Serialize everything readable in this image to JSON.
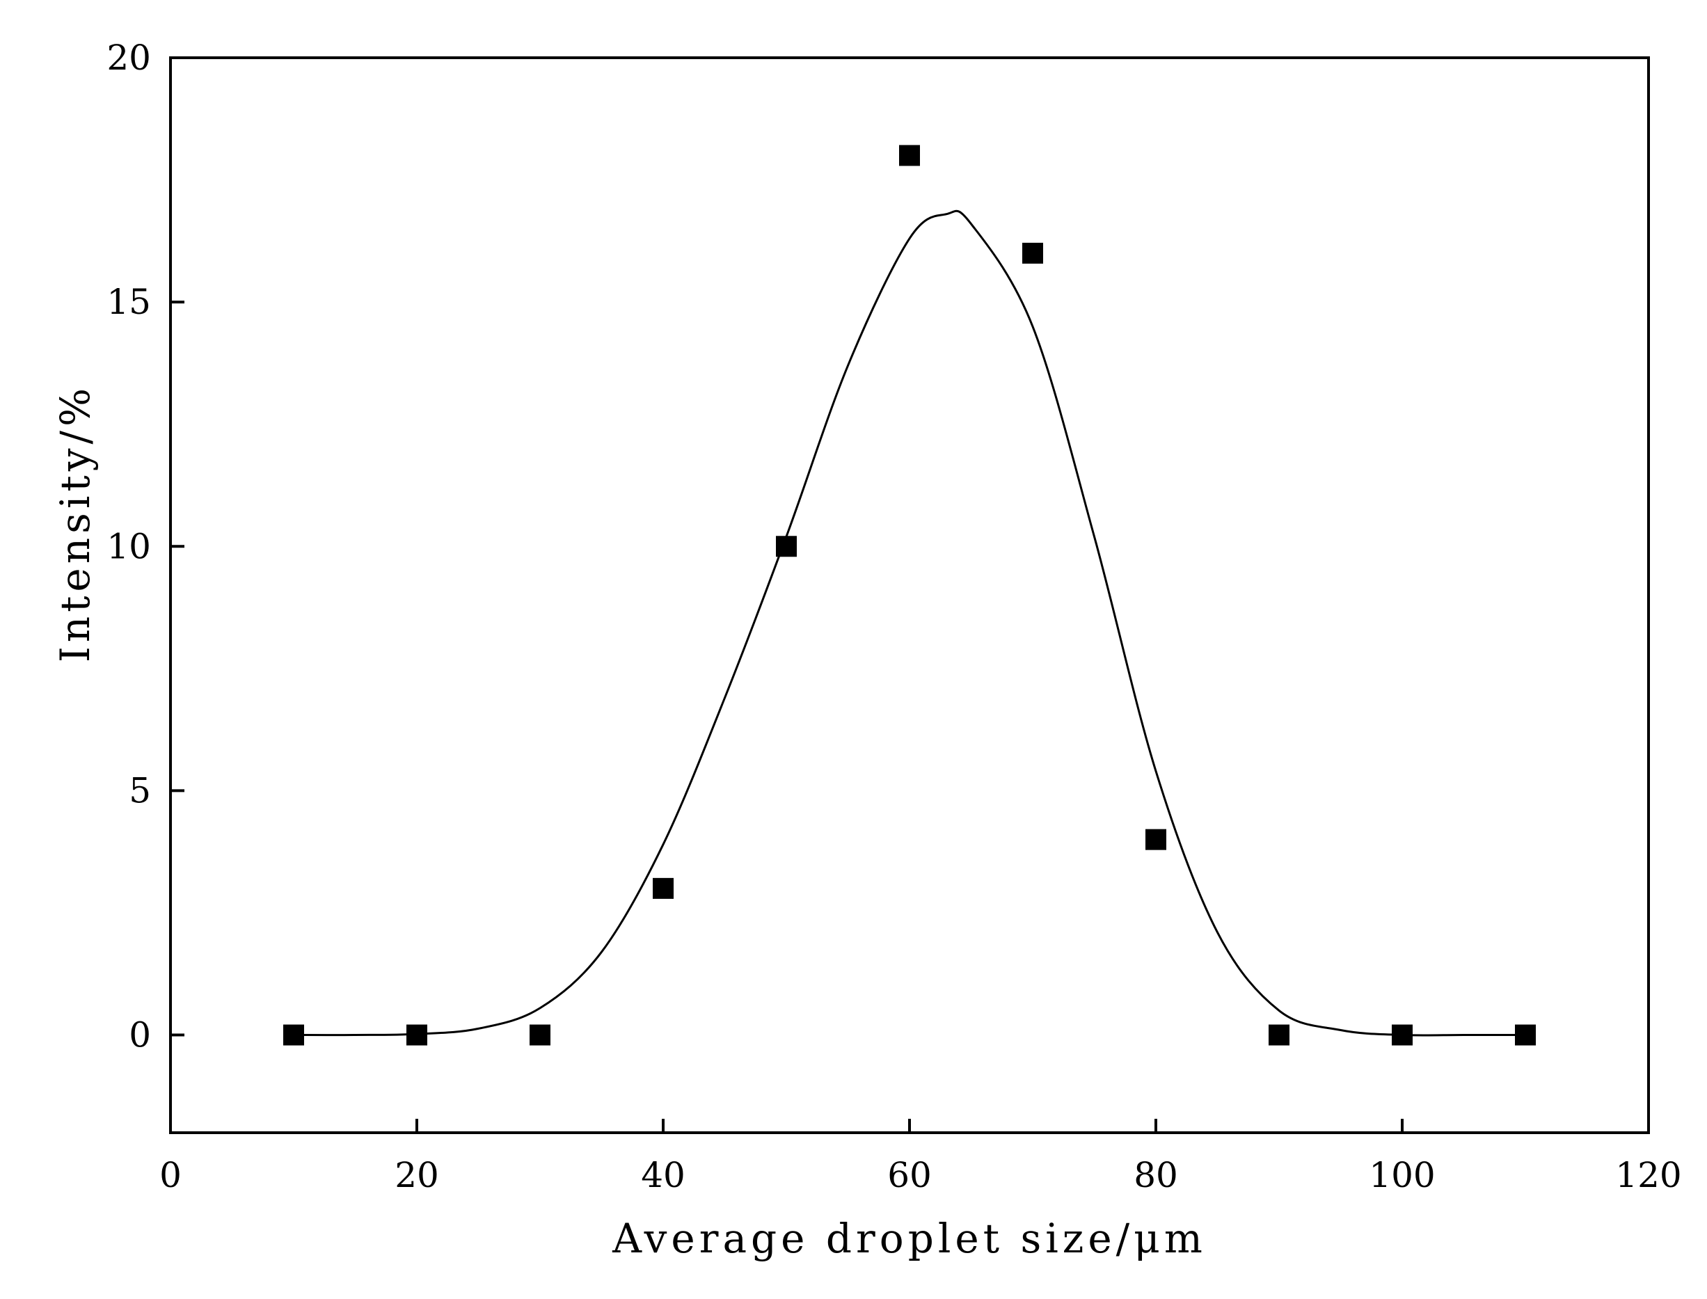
{
  "chart_data": {
    "type": "scatter",
    "title": "",
    "xlabel": "Average droplet size/μm",
    "ylabel": "Intensity/%",
    "xlim": [
      0,
      120
    ],
    "ylim": [
      -2,
      20
    ],
    "x_ticks": [
      0,
      20,
      40,
      60,
      80,
      100,
      120
    ],
    "y_ticks": [
      0,
      5,
      10,
      15,
      20
    ],
    "grid": false,
    "legend": "none",
    "series": [
      {
        "kind": "points",
        "marker": "filled-square",
        "color": "#000000",
        "x": [
          10,
          20,
          30,
          40,
          50,
          60,
          70,
          80,
          90,
          100,
          110
        ],
        "y": [
          0,
          0,
          0,
          3,
          10,
          18,
          16,
          4,
          0,
          0,
          0
        ]
      },
      {
        "kind": "fitted-curve",
        "style": "solid line",
        "color": "#000000",
        "x": [
          10,
          15,
          20,
          25,
          30,
          35,
          40,
          45,
          50,
          55,
          60,
          63,
          65,
          70,
          75,
          80,
          85,
          90,
          95,
          100,
          105,
          110
        ],
        "y": [
          0,
          0,
          0.02,
          0.13,
          0.55,
          1.7,
          3.9,
          6.9,
          10.2,
          13.7,
          16.3,
          16.8,
          16.6,
          14.5,
          10.2,
          5.4,
          2.1,
          0.5,
          0.1,
          0,
          0,
          0
        ]
      }
    ]
  }
}
